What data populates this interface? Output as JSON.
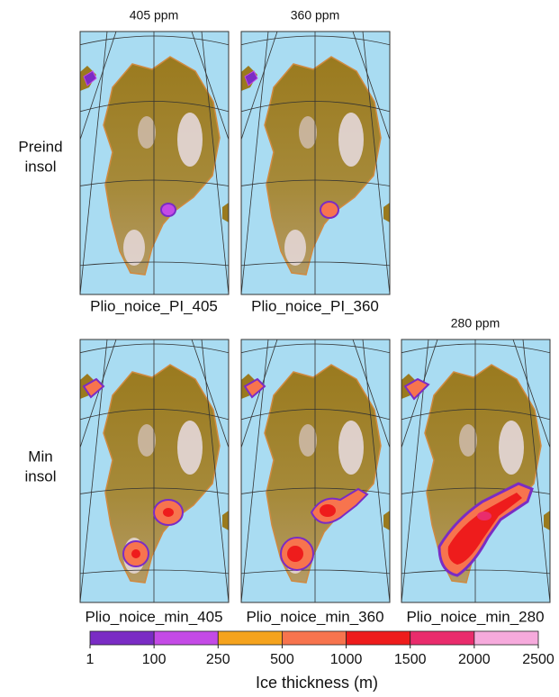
{
  "columns": [
    "405 ppm",
    "360 ppm",
    "280 ppm"
  ],
  "rows": [
    {
      "label": [
        "Preind",
        "insol"
      ]
    },
    {
      "label": [
        "Min",
        "insol"
      ]
    }
  ],
  "panels": [
    {
      "label": "Plio_noice_PI_405"
    },
    {
      "label": "Plio_noice_PI_360"
    },
    {
      "label": "Plio_noice_min_405"
    },
    {
      "label": "Plio_noice_min_360"
    },
    {
      "label": "Plio_noice_min_280"
    }
  ],
  "colorbar": {
    "label": "Ice thickness (m)",
    "ticks": [
      1,
      100,
      250,
      500,
      1000,
      1500,
      2000,
      2500
    ],
    "colors": [
      "#7a2cc4",
      "#c44ae6",
      "#f5a31d",
      "#f7744e",
      "#ee1c1c",
      "#e92c6c",
      "#f6aadc"
    ]
  }
}
